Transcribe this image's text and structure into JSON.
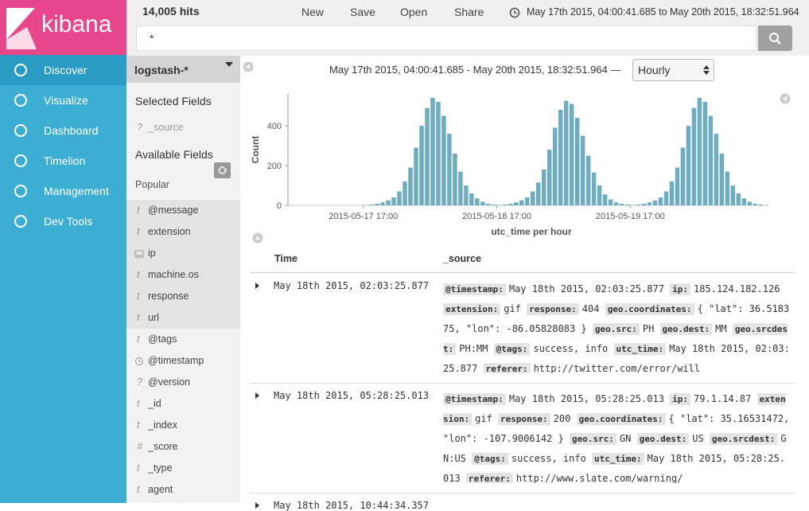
{
  "header": {
    "brand": "kibana",
    "hits": "14,005 hits",
    "menu": [
      "New",
      "Save",
      "Open",
      "Share"
    ],
    "time_range": "May 17th 2015, 04:00:41.685 to May 20th 2015, 18:32:51.964",
    "query": "*"
  },
  "nav": [
    "Discover",
    "Visualize",
    "Dashboard",
    "Timelion",
    "Management",
    "Dev Tools"
  ],
  "sidebar": {
    "index": "logstash-*",
    "selected_title": "Selected Fields",
    "selected": [
      {
        "icon": "?",
        "name": "_source"
      }
    ],
    "available_title": "Available Fields",
    "popular_title": "Popular",
    "fields": [
      {
        "icon": "t",
        "name": "@message"
      },
      {
        "icon": "t",
        "name": "extension"
      },
      {
        "name": "ip"
      },
      {
        "icon": "t",
        "name": "machine.os"
      },
      {
        "icon": "t",
        "name": "response"
      },
      {
        "icon": "t",
        "name": "url"
      },
      {
        "icon": "t",
        "name": "@tags"
      },
      {
        "name": "@timestamp"
      },
      {
        "icon": "?",
        "name": "@version"
      },
      {
        "icon": "t",
        "name": "_id"
      },
      {
        "icon": "t",
        "name": "_index"
      },
      {
        "icon": "#",
        "name": "_score"
      },
      {
        "icon": "t",
        "name": "_type"
      },
      {
        "icon": "t",
        "name": "agent"
      }
    ]
  },
  "chart_header": {
    "range": "May 17th 2015, 04:00:41.685 - May 20th 2015, 18:32:51.964 —",
    "interval": "Hourly"
  },
  "chart_data": {
    "type": "bar",
    "y_label": "Count",
    "x_label": "utc_time per hour",
    "color": "#6eadc1",
    "x": [
      "2015-05-17 17:00",
      "2015-05-17 18:00",
      "2015-05-17 19:00",
      "2015-05-17 20:00",
      "2015-05-17 21:00",
      "2015-05-17 22:00",
      "2015-05-17 23:00",
      "2015-05-18 00:00",
      "2015-05-18 01:00",
      "2015-05-18 02:00",
      "2015-05-18 03:00",
      "2015-05-18 04:00",
      "2015-05-18 05:00",
      "2015-05-18 06:00",
      "2015-05-18 07:00",
      "2015-05-18 08:00",
      "2015-05-18 09:00",
      "2015-05-18 10:00",
      "2015-05-18 11:00",
      "2015-05-18 12:00",
      "2015-05-18 13:00",
      "2015-05-18 14:00",
      "2015-05-18 15:00",
      "2015-05-18 16:00",
      "2015-05-18 17:00",
      "2015-05-18 18:00",
      "2015-05-18 19:00",
      "2015-05-18 20:00",
      "2015-05-18 21:00",
      "2015-05-18 22:00",
      "2015-05-18 23:00",
      "2015-05-19 00:00",
      "2015-05-19 01:00",
      "2015-05-19 02:00",
      "2015-05-19 03:00",
      "2015-05-19 04:00",
      "2015-05-19 05:00",
      "2015-05-19 06:00",
      "2015-05-19 07:00",
      "2015-05-19 08:00",
      "2015-05-19 09:00",
      "2015-05-19 10:00",
      "2015-05-19 11:00",
      "2015-05-19 12:00",
      "2015-05-19 13:00",
      "2015-05-19 14:00",
      "2015-05-19 15:00",
      "2015-05-19 16:00",
      "2015-05-19 17:00",
      "2015-05-19 18:00",
      "2015-05-19 19:00",
      "2015-05-19 20:00",
      "2015-05-19 21:00",
      "2015-05-19 22:00",
      "2015-05-19 23:00",
      "2015-05-20 00:00",
      "2015-05-20 01:00",
      "2015-05-20 02:00",
      "2015-05-20 03:00",
      "2015-05-20 04:00",
      "2015-05-20 05:00",
      "2015-05-20 06:00",
      "2015-05-20 07:00",
      "2015-05-20 08:00",
      "2015-05-20 09:00",
      "2015-05-20 10:00",
      "2015-05-20 11:00",
      "2015-05-20 12:00",
      "2015-05-20 13:00",
      "2015-05-20 14:00",
      "2015-05-20 15:00",
      "2015-05-20 16:00",
      "2015-05-20 17:00"
    ],
    "values": [
      2,
      4,
      8,
      15,
      25,
      40,
      70,
      120,
      190,
      290,
      400,
      490,
      540,
      520,
      450,
      360,
      260,
      170,
      100,
      60,
      35,
      18,
      8,
      4,
      2,
      4,
      8,
      15,
      25,
      40,
      70,
      115,
      180,
      280,
      390,
      480,
      525,
      510,
      440,
      350,
      250,
      165,
      100,
      55,
      30,
      15,
      8,
      4,
      2,
      4,
      8,
      15,
      25,
      40,
      70,
      120,
      190,
      290,
      400,
      490,
      540,
      520,
      450,
      360,
      260,
      170,
      100,
      60,
      35,
      18,
      8,
      4,
      2
    ],
    "xlim": [
      "2015-05-17 04:00",
      "2015-05-20 18:00"
    ],
    "xticks": [
      "2015-05-17 17:00",
      "2015-05-18 17:00",
      "2015-05-19 17:00"
    ],
    "ylim": [
      0,
      560
    ],
    "yticks": [
      0,
      200,
      400
    ]
  },
  "table": {
    "columns": [
      "Time",
      "_source"
    ],
    "rows": [
      {
        "time": "May 18th 2015, 02:03:25.877",
        "source": [
          [
            "@timestamp:",
            "May 18th 2015, 02:03:25.877"
          ],
          [
            "ip:",
            "185.124.182.126"
          ],
          [
            "extension:",
            "gif"
          ],
          [
            "response:",
            "404"
          ],
          [
            "geo.coordinates:",
            "{ \"lat\": 36.518375, \"lon\": -86.05828083 }"
          ],
          [
            "geo.src:",
            "PH"
          ],
          [
            "geo.dest:",
            "MM"
          ],
          [
            "geo.srcdest:",
            "PH:MM"
          ],
          [
            "@tags:",
            "success, info"
          ],
          [
            "utc_time:",
            "May 18th 2015, 02:03:25.877"
          ],
          [
            "referer:",
            "http://twitter.com/error/will"
          ]
        ]
      },
      {
        "time": "May 18th 2015, 05:28:25.013",
        "source": [
          [
            "@timestamp:",
            "May 18th 2015, 05:28:25.013"
          ],
          [
            "ip:",
            "79.1.14.87"
          ],
          [
            "extension:",
            "gif"
          ],
          [
            "response:",
            "200"
          ],
          [
            "geo.coordinates:",
            "{ \"lat\": 35.16531472, \"lon\": -107.9006142 }"
          ],
          [
            "geo.src:",
            "GN"
          ],
          [
            "geo.dest:",
            "US"
          ],
          [
            "geo.srcdest:",
            "GN:US"
          ],
          [
            "@tags:",
            "success, info"
          ],
          [
            "utc_time:",
            "May 18th 2015, 05:28:25.013"
          ],
          [
            "referer:",
            "http://www.slate.com/warning/"
          ]
        ]
      },
      {
        "time": "May 18th 2015, 10:44:34.357"
      }
    ]
  }
}
